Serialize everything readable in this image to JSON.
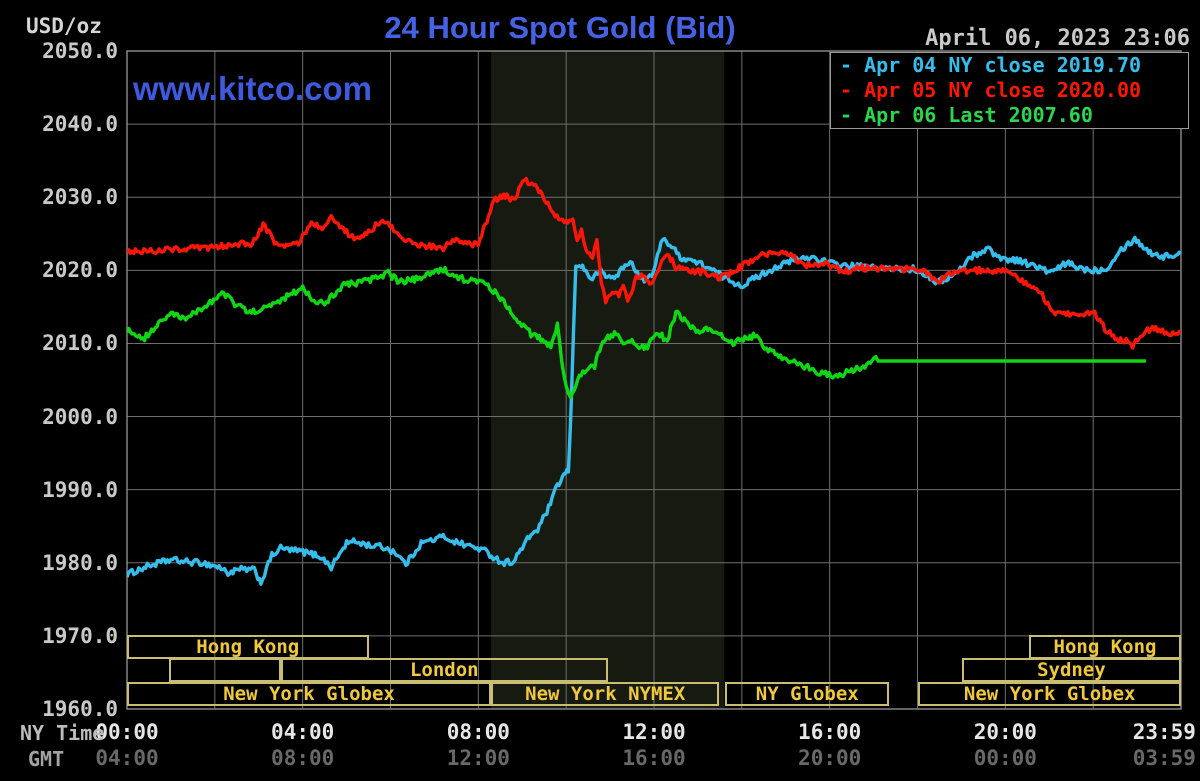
{
  "header": {
    "units_label": "USD/oz",
    "title": "24 Hour Spot Gold (Bid)",
    "datetime": "April 06, 2023 23:06",
    "watermark": "www.kitco.com"
  },
  "legend": {
    "items": [
      {
        "label": "- Apr 04 NY close 2019.70",
        "color": "#35bdec"
      },
      {
        "label": "- Apr 05 NY close 2020.00",
        "color": "#fb1608"
      },
      {
        "label": "- Apr 06 Last 2007.60",
        "color": "#2bd64d"
      }
    ]
  },
  "axes": {
    "ny_time_label": "NY Time",
    "gmt_label": "GMT",
    "tick_hours": [
      0,
      4,
      8,
      12,
      16,
      20,
      23.62
    ],
    "ny_times": [
      "00:00",
      "04:00",
      "08:00",
      "12:00",
      "16:00",
      "20:00",
      "23:59"
    ],
    "gmt_times": [
      "04:00",
      "08:00",
      "12:00",
      "16:00",
      "20:00",
      "00:00",
      "03:59"
    ],
    "yticks": [
      "2050.0",
      "2040.0",
      "2030.0",
      "2020.0",
      "2010.0",
      "2000.0",
      "1990.0",
      "1980.0",
      "1970.0",
      "1960.0"
    ]
  },
  "sessions": {
    "boxes": [
      {
        "row": 1,
        "start": 0.0,
        "end": 5.5,
        "label": "Hong Kong"
      },
      {
        "row": 1,
        "start": 20.54,
        "end": 24.0,
        "label": "Hong Kong"
      },
      {
        "row": 2,
        "start": 0.96,
        "end": 3.5,
        "label": ""
      },
      {
        "row": 2,
        "start": 3.5,
        "end": 10.95,
        "label": "London"
      },
      {
        "row": 2,
        "start": 19.01,
        "end": 24.0,
        "label": "Sydney"
      },
      {
        "row": 3,
        "start": 0.0,
        "end": 8.29,
        "label": "New York Globex"
      },
      {
        "row": 3,
        "start": 8.29,
        "end": 13.49,
        "label": "New York NYMEX"
      },
      {
        "row": 3,
        "start": 13.62,
        "end": 17.36,
        "label": "NY Globex"
      },
      {
        "row": 3,
        "start": 18.02,
        "end": 24.0,
        "label": "New York Globex"
      }
    ]
  },
  "colors": {
    "background": "#000000",
    "grid": "#6e6e6e",
    "plot_border": "#848484",
    "session_band": "#171a11",
    "session_border": "#c9bd72",
    "session_text": "#f0c83c",
    "title_blue": "#4462e3",
    "watermark_blue": "#3e5add",
    "axis_text": "#c9c9c9",
    "ny_tick_text": "#e6e6e6",
    "gmt_tick_text": "#686868",
    "ny_time_caption": "#bdbdbd",
    "gmt_caption": "#a3a3a3",
    "date_text": "#c9c9c9"
  },
  "chart_data": {
    "type": "line",
    "title": "24 Hour Spot Gold (Bid)",
    "xlabel": "NY Time (hours)",
    "ylabel": "USD/oz",
    "xlim": [
      0,
      24
    ],
    "ylim": [
      1960,
      2050
    ],
    "grid": {
      "x_step_hours": 2,
      "y_step": 10
    },
    "highlight_band_hours": [
      8.29,
      13.6
    ],
    "legend_position": "top-right",
    "series": [
      {
        "name": "Apr 04 NY close",
        "close": 2019.7,
        "color": "#35bdec",
        "points": [
          [
            0,
            1978.4
          ],
          [
            0.5,
            1979.6
          ],
          [
            1.0,
            1980.4
          ],
          [
            1.4,
            1980.1
          ],
          [
            1.7,
            1980.0
          ],
          [
            2.1,
            1979.4
          ],
          [
            2.3,
            1978.6
          ],
          [
            2.6,
            1979.1
          ],
          [
            2.9,
            1979.0
          ],
          [
            3.05,
            1977.3
          ],
          [
            3.3,
            1981.0
          ],
          [
            3.5,
            1982.0
          ],
          [
            3.75,
            1981.7
          ],
          [
            4.0,
            1981.5
          ],
          [
            4.4,
            1980.9
          ],
          [
            4.65,
            1979.4
          ],
          [
            5.0,
            1982.7
          ],
          [
            5.2,
            1982.9
          ],
          [
            5.5,
            1982.4
          ],
          [
            5.8,
            1982.2
          ],
          [
            6.1,
            1981.5
          ],
          [
            6.35,
            1979.8
          ],
          [
            6.7,
            1982.7
          ],
          [
            7.0,
            1983.2
          ],
          [
            7.2,
            1983.6
          ],
          [
            7.5,
            1982.8
          ],
          [
            7.8,
            1982.3
          ],
          [
            8.1,
            1981.8
          ],
          [
            8.3,
            1981.0
          ],
          [
            8.55,
            1980.0
          ],
          [
            8.8,
            1980.2
          ],
          [
            9.2,
            1983.9
          ],
          [
            9.35,
            1984.5
          ],
          [
            9.6,
            1987.5
          ],
          [
            9.8,
            1990.5
          ],
          [
            9.95,
            1992.0
          ],
          [
            10.05,
            1992.6
          ],
          [
            10.1,
            1999.0
          ],
          [
            10.13,
            2005.0
          ],
          [
            10.17,
            2012.0
          ],
          [
            10.22,
            2020.3
          ],
          [
            10.3,
            2021.0
          ],
          [
            10.45,
            2019.8
          ],
          [
            10.6,
            2018.7
          ],
          [
            10.75,
            2020.0
          ],
          [
            10.9,
            2019.2
          ],
          [
            11.1,
            2019.0
          ],
          [
            11.3,
            2020.4
          ],
          [
            11.5,
            2021.1
          ],
          [
            11.7,
            2018.7
          ],
          [
            11.9,
            2019.0
          ],
          [
            12.0,
            2020.0
          ],
          [
            12.2,
            2024.6
          ],
          [
            12.6,
            2021.8
          ],
          [
            12.85,
            2021.4
          ],
          [
            13.2,
            2020.5
          ],
          [
            13.6,
            2019.0
          ],
          [
            14.0,
            2017.9
          ],
          [
            14.4,
            2019.3
          ],
          [
            14.8,
            2020.5
          ],
          [
            15.2,
            2021.4
          ],
          [
            15.6,
            2021.8
          ],
          [
            16.0,
            2021.0
          ],
          [
            16.4,
            2020.6
          ],
          [
            16.9,
            2020.4
          ],
          [
            17.4,
            2020.2
          ],
          [
            17.9,
            2020.2
          ],
          [
            18.2,
            2019.5
          ],
          [
            18.45,
            2018.3
          ],
          [
            18.9,
            2019.6
          ],
          [
            19.2,
            2021.8
          ],
          [
            19.6,
            2023.0
          ],
          [
            19.9,
            2021.6
          ],
          [
            20.3,
            2021.4
          ],
          [
            20.7,
            2020.5
          ],
          [
            21.05,
            2019.7
          ],
          [
            21.4,
            2021.0
          ],
          [
            21.7,
            2020.3
          ],
          [
            22.0,
            2020.0
          ],
          [
            22.3,
            2020.2
          ],
          [
            22.6,
            2022.7
          ],
          [
            22.95,
            2024.3
          ],
          [
            23.3,
            2022.4
          ],
          [
            23.6,
            2021.9
          ],
          [
            23.8,
            2022.0
          ],
          [
            24,
            2022.3
          ]
        ]
      },
      {
        "name": "Apr 05 NY close",
        "close": 2020.0,
        "color": "#fb1608",
        "points": [
          [
            0,
            2022.7
          ],
          [
            0.5,
            2022.6
          ],
          [
            1.0,
            2022.9
          ],
          [
            1.5,
            2023.0
          ],
          [
            2.0,
            2023.1
          ],
          [
            2.5,
            2023.7
          ],
          [
            2.85,
            2023.5
          ],
          [
            3.1,
            2026.2
          ],
          [
            3.4,
            2023.6
          ],
          [
            3.7,
            2023.3
          ],
          [
            3.95,
            2024.0
          ],
          [
            4.2,
            2026.8
          ],
          [
            4.4,
            2025.7
          ],
          [
            4.65,
            2027.1
          ],
          [
            5.0,
            2025.2
          ],
          [
            5.3,
            2024.1
          ],
          [
            5.7,
            2026.3
          ],
          [
            5.9,
            2026.8
          ],
          [
            6.2,
            2024.5
          ],
          [
            6.7,
            2023.4
          ],
          [
            7.2,
            2023.0
          ],
          [
            7.5,
            2024.4
          ],
          [
            7.7,
            2023.8
          ],
          [
            8.0,
            2023.4
          ],
          [
            8.35,
            2029.5
          ],
          [
            8.65,
            2030.3
          ],
          [
            8.8,
            2029.5
          ],
          [
            9.05,
            2032.3
          ],
          [
            9.3,
            2031.6
          ],
          [
            9.5,
            2029.7
          ],
          [
            9.75,
            2027.7
          ],
          [
            10.0,
            2026.6
          ],
          [
            10.15,
            2027.4
          ],
          [
            10.25,
            2023.7
          ],
          [
            10.35,
            2025.8
          ],
          [
            10.45,
            2022.6
          ],
          [
            10.6,
            2021.5
          ],
          [
            10.7,
            2024.0
          ],
          [
            10.8,
            2018.6
          ],
          [
            10.9,
            2015.6
          ],
          [
            11.05,
            2017.3
          ],
          [
            11.2,
            2016.8
          ],
          [
            11.3,
            2018.2
          ],
          [
            11.4,
            2015.9
          ],
          [
            11.6,
            2018.9
          ],
          [
            11.75,
            2019.6
          ],
          [
            11.9,
            2018.0
          ],
          [
            12.1,
            2020.0
          ],
          [
            12.3,
            2022.4
          ],
          [
            12.5,
            2020.4
          ],
          [
            12.8,
            2020.0
          ],
          [
            13.1,
            2019.8
          ],
          [
            13.5,
            2018.9
          ],
          [
            13.9,
            2020.2
          ],
          [
            14.2,
            2021.3
          ],
          [
            14.5,
            2022.1
          ],
          [
            15.0,
            2022.5
          ],
          [
            15.4,
            2020.7
          ],
          [
            15.9,
            2021.0
          ],
          [
            16.3,
            2019.8
          ],
          [
            16.7,
            2020.3
          ],
          [
            17.1,
            2020.3
          ],
          [
            17.6,
            2020.2
          ],
          [
            18.1,
            2020.1
          ],
          [
            18.45,
            2018.4
          ],
          [
            18.8,
            2019.8
          ],
          [
            19.2,
            2020.0
          ],
          [
            19.6,
            2020.0
          ],
          [
            20.1,
            2020.0
          ],
          [
            20.3,
            2019.0
          ],
          [
            20.55,
            2017.9
          ],
          [
            20.8,
            2017.0
          ],
          [
            21.05,
            2014.3
          ],
          [
            21.3,
            2013.8
          ],
          [
            21.55,
            2014.1
          ],
          [
            21.75,
            2013.6
          ],
          [
            22.0,
            2014.3
          ],
          [
            22.3,
            2011.8
          ],
          [
            22.5,
            2010.7
          ],
          [
            22.75,
            2010.4
          ],
          [
            22.9,
            2009.7
          ],
          [
            23.2,
            2011.8
          ],
          [
            23.5,
            2012.0
          ],
          [
            23.7,
            2011.2
          ],
          [
            24,
            2011.6
          ]
        ]
      },
      {
        "name": "Apr 06 Last",
        "last": 2007.6,
        "color": "#10d714",
        "flat_after": 17.1,
        "end_hour": 23.2,
        "points": [
          [
            0,
            2011.8
          ],
          [
            0.4,
            2010.8
          ],
          [
            1.0,
            2014.2
          ],
          [
            1.3,
            2013.2
          ],
          [
            2.05,
            2016.3
          ],
          [
            2.2,
            2016.8
          ],
          [
            2.5,
            2015.2
          ],
          [
            2.8,
            2014.2
          ],
          [
            3.2,
            2014.9
          ],
          [
            3.8,
            2017.0
          ],
          [
            4.0,
            2017.7
          ],
          [
            4.3,
            2015.6
          ],
          [
            4.5,
            2015.5
          ],
          [
            4.9,
            2017.9
          ],
          [
            5.5,
            2018.6
          ],
          [
            5.95,
            2019.6
          ],
          [
            6.2,
            2018.4
          ],
          [
            6.7,
            2018.9
          ],
          [
            7.1,
            2020.0
          ],
          [
            7.2,
            2020.2
          ],
          [
            7.5,
            2019.0
          ],
          [
            7.8,
            2018.6
          ],
          [
            8.1,
            2018.4
          ],
          [
            8.5,
            2016.3
          ],
          [
            8.9,
            2013.2
          ],
          [
            9.2,
            2011.3
          ],
          [
            9.5,
            2010.4
          ],
          [
            9.65,
            2009.5
          ],
          [
            9.8,
            2012.5
          ],
          [
            9.9,
            2007.3
          ],
          [
            10.0,
            2004.5
          ],
          [
            10.1,
            2002.5
          ],
          [
            10.3,
            2005.4
          ],
          [
            10.5,
            2006.6
          ],
          [
            10.65,
            2007.0
          ],
          [
            10.8,
            2010.0
          ],
          [
            10.95,
            2010.7
          ],
          [
            11.1,
            2011.4
          ],
          [
            11.3,
            2010.0
          ],
          [
            11.5,
            2010.4
          ],
          [
            11.7,
            2009.3
          ],
          [
            11.85,
            2009.7
          ],
          [
            12.0,
            2010.9
          ],
          [
            12.1,
            2011.4
          ],
          [
            12.3,
            2010.4
          ],
          [
            12.5,
            2014.2
          ],
          [
            12.8,
            2012.5
          ],
          [
            13.0,
            2011.8
          ],
          [
            13.3,
            2011.8
          ],
          [
            13.8,
            2010.1
          ],
          [
            14.3,
            2011.1
          ],
          [
            14.6,
            2009.0
          ],
          [
            15.0,
            2007.9
          ],
          [
            15.5,
            2006.7
          ],
          [
            15.7,
            2006.0
          ],
          [
            16.15,
            2005.5
          ],
          [
            16.5,
            2006.3
          ],
          [
            16.8,
            2007.0
          ],
          [
            17.05,
            2007.8
          ],
          [
            17.1,
            2007.6
          ],
          [
            23.2,
            2007.6
          ]
        ]
      }
    ]
  }
}
